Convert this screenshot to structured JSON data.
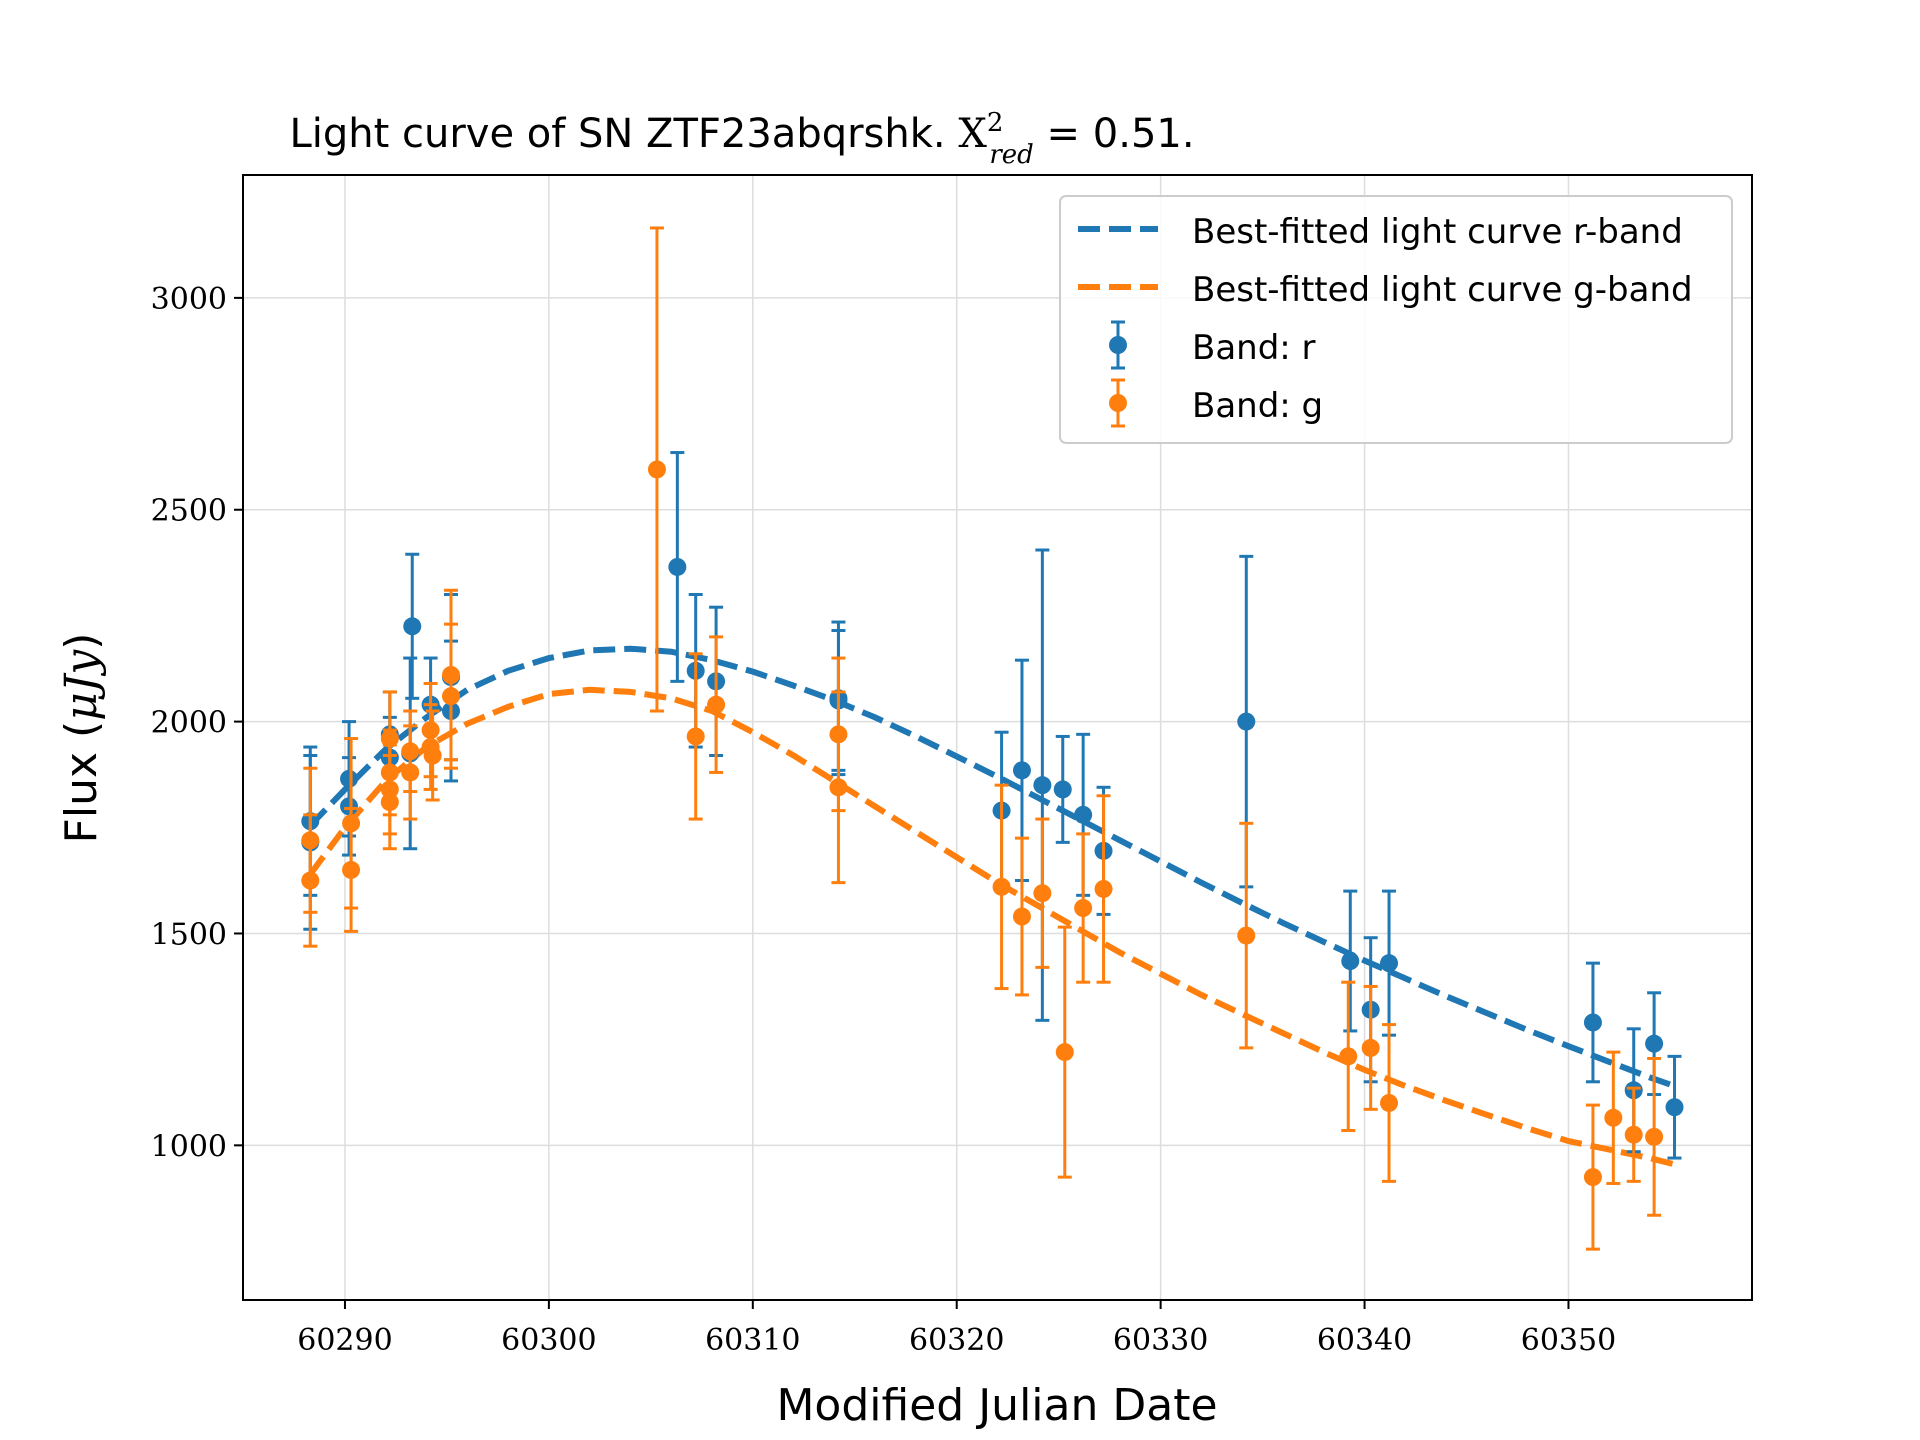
{
  "chart_data": {
    "type": "scatter",
    "title": {
      "prefix": "Light curve of SN ZTF23abqrshk. ",
      "chi_symbol": "X",
      "chi_sup": "2",
      "chi_sub": "red",
      "value": " = 0.51."
    },
    "xlabel": "Modified Julian Date",
    "ylabel": {
      "text": "Flux (",
      "unit": "μJy",
      "close": ")"
    },
    "xlim": [
      60285,
      60359
    ],
    "ylim": [
      635,
      3290
    ],
    "xticks": [
      60290,
      60300,
      60310,
      60320,
      60330,
      60340,
      60350
    ],
    "yticks": [
      1000,
      1500,
      2000,
      2500,
      3000
    ],
    "grid": true,
    "legend_position": "top-right",
    "legend": [
      "Best-fitted light curve r-band",
      "Best-fitted light curve g-band",
      "Band: r",
      "Band: g"
    ],
    "colors": {
      "r": "#1f77b4",
      "g": "#ff7f0e"
    },
    "series": [
      {
        "name": "Band: r",
        "band": "r",
        "points": [
          {
            "x": 60288.3,
            "y": 1765,
            "err": 175
          },
          {
            "x": 60288.3,
            "y": 1715,
            "err": 205
          },
          {
            "x": 60290.2,
            "y": 1865,
            "err": 135
          },
          {
            "x": 60290.2,
            "y": 1800,
            "err": 115
          },
          {
            "x": 60292.2,
            "y": 1970,
            "err": 100
          },
          {
            "x": 60292.2,
            "y": 1915,
            "err": 95
          },
          {
            "x": 60293.2,
            "y": 1925,
            "err": 225
          },
          {
            "x": 60293.3,
            "y": 2225,
            "err": 170
          },
          {
            "x": 60294.2,
            "y": 2040,
            "err": 110
          },
          {
            "x": 60295.2,
            "y": 2105,
            "err": 195
          },
          {
            "x": 60295.2,
            "y": 2025,
            "err": 165
          },
          {
            "x": 60306.3,
            "y": 2365,
            "err": 270
          },
          {
            "x": 60307.2,
            "y": 2120,
            "err": 180
          },
          {
            "x": 60308.2,
            "y": 2095,
            "err": 175
          },
          {
            "x": 60314.2,
            "y": 2055,
            "err": 180
          },
          {
            "x": 60314.2,
            "y": 2050,
            "err": 165
          },
          {
            "x": 60322.2,
            "y": 1790,
            "err": 185
          },
          {
            "x": 60323.2,
            "y": 1885,
            "err": 260
          },
          {
            "x": 60324.2,
            "y": 1850,
            "err": 555
          },
          {
            "x": 60325.2,
            "y": 1840,
            "err": 125
          },
          {
            "x": 60326.2,
            "y": 1780,
            "err": 190
          },
          {
            "x": 60327.2,
            "y": 1695,
            "err": 150
          },
          {
            "x": 60334.2,
            "y": 2000,
            "err": 390
          },
          {
            "x": 60339.3,
            "y": 1435,
            "err": 165
          },
          {
            "x": 60340.3,
            "y": 1320,
            "err": 170
          },
          {
            "x": 60341.2,
            "y": 1430,
            "err": 170
          },
          {
            "x": 60351.2,
            "y": 1290,
            "err": 140
          },
          {
            "x": 60353.2,
            "y": 1130,
            "err": 145
          },
          {
            "x": 60354.2,
            "y": 1240,
            "err": 120
          },
          {
            "x": 60355.2,
            "y": 1090,
            "err": 120
          }
        ]
      },
      {
        "name": "Band: g",
        "band": "g",
        "points": [
          {
            "x": 60288.3,
            "y": 1625,
            "err": 155
          },
          {
            "x": 60288.3,
            "y": 1720,
            "err": 170
          },
          {
            "x": 60290.3,
            "y": 1760,
            "err": 200
          },
          {
            "x": 60290.3,
            "y": 1650,
            "err": 145
          },
          {
            "x": 60292.2,
            "y": 1960,
            "err": 110
          },
          {
            "x": 60292.2,
            "y": 1880,
            "err": 100
          },
          {
            "x": 60292.2,
            "y": 1840,
            "err": 105
          },
          {
            "x": 60292.2,
            "y": 1810,
            "err": 110
          },
          {
            "x": 60293.2,
            "y": 1930,
            "err": 95
          },
          {
            "x": 60293.2,
            "y": 1880,
            "err": 110
          },
          {
            "x": 60294.2,
            "y": 1980,
            "err": 110
          },
          {
            "x": 60294.2,
            "y": 1940,
            "err": 100
          },
          {
            "x": 60294.3,
            "y": 1920,
            "err": 105
          },
          {
            "x": 60295.2,
            "y": 2110,
            "err": 200
          },
          {
            "x": 60295.2,
            "y": 2060,
            "err": 170
          },
          {
            "x": 60305.3,
            "y": 2595,
            "err": 570
          },
          {
            "x": 60307.2,
            "y": 1965,
            "err": 195
          },
          {
            "x": 60308.2,
            "y": 2040,
            "err": 160
          },
          {
            "x": 60314.2,
            "y": 1970,
            "err": 180
          },
          {
            "x": 60314.2,
            "y": 1845,
            "err": 225
          },
          {
            "x": 60322.2,
            "y": 1610,
            "err": 240
          },
          {
            "x": 60323.2,
            "y": 1540,
            "err": 185
          },
          {
            "x": 60324.2,
            "y": 1595,
            "err": 175
          },
          {
            "x": 60325.3,
            "y": 1220,
            "err": 295
          },
          {
            "x": 60326.2,
            "y": 1560,
            "err": 175
          },
          {
            "x": 60327.2,
            "y": 1605,
            "err": 220
          },
          {
            "x": 60334.2,
            "y": 1495,
            "err": 265
          },
          {
            "x": 60339.2,
            "y": 1210,
            "err": 175
          },
          {
            "x": 60340.3,
            "y": 1230,
            "err": 145
          },
          {
            "x": 60341.2,
            "y": 1100,
            "err": 185
          },
          {
            "x": 60351.2,
            "y": 925,
            "err": 170
          },
          {
            "x": 60352.2,
            "y": 1065,
            "err": 155
          },
          {
            "x": 60353.2,
            "y": 1025,
            "err": 110
          },
          {
            "x": 60354.2,
            "y": 1020,
            "err": 185
          }
        ]
      },
      {
        "name": "Best-fitted light curve r-band",
        "band": "r",
        "type": "dashed-line",
        "x": [
          60288.3,
          60290,
          60292,
          60294,
          60296,
          60298,
          60300,
          60302,
          60304,
          60306,
          60308,
          60310,
          60312,
          60314,
          60316,
          60318,
          60320,
          60322,
          60324,
          60326,
          60328,
          60330,
          60332,
          60334,
          60336,
          60338,
          60340,
          60342,
          60344,
          60346,
          60348,
          60350,
          60352,
          60354,
          60355.2
        ],
        "y": [
          1755,
          1840,
          1935,
          2010,
          2075,
          2120,
          2150,
          2168,
          2172,
          2165,
          2145,
          2118,
          2085,
          2050,
          2010,
          1965,
          1918,
          1870,
          1820,
          1770,
          1720,
          1670,
          1620,
          1572,
          1525,
          1480,
          1436,
          1394,
          1352,
          1312,
          1272,
          1234,
          1197,
          1160,
          1140
        ]
      },
      {
        "name": "Best-fitted light curve g-band",
        "band": "g",
        "type": "dashed-line",
        "x": [
          60288.3,
          60290,
          60292,
          60294,
          60296,
          60298,
          60300,
          60302,
          60304,
          60306,
          60308,
          60310,
          60312,
          60314,
          60316,
          60318,
          60320,
          60322,
          60324,
          60326,
          60328,
          60330,
          60332,
          60334,
          60336,
          60338,
          60340,
          60342,
          60344,
          60346,
          60348,
          60350,
          60352,
          60354,
          60355.2
        ],
        "y": [
          1640,
          1750,
          1860,
          1940,
          1995,
          2035,
          2065,
          2075,
          2070,
          2055,
          2025,
          1975,
          1920,
          1860,
          1800,
          1740,
          1680,
          1620,
          1565,
          1510,
          1455,
          1405,
          1355,
          1310,
          1265,
          1220,
          1178,
          1140,
          1105,
          1072,
          1040,
          1010,
          990,
          970,
          955
        ]
      }
    ]
  }
}
